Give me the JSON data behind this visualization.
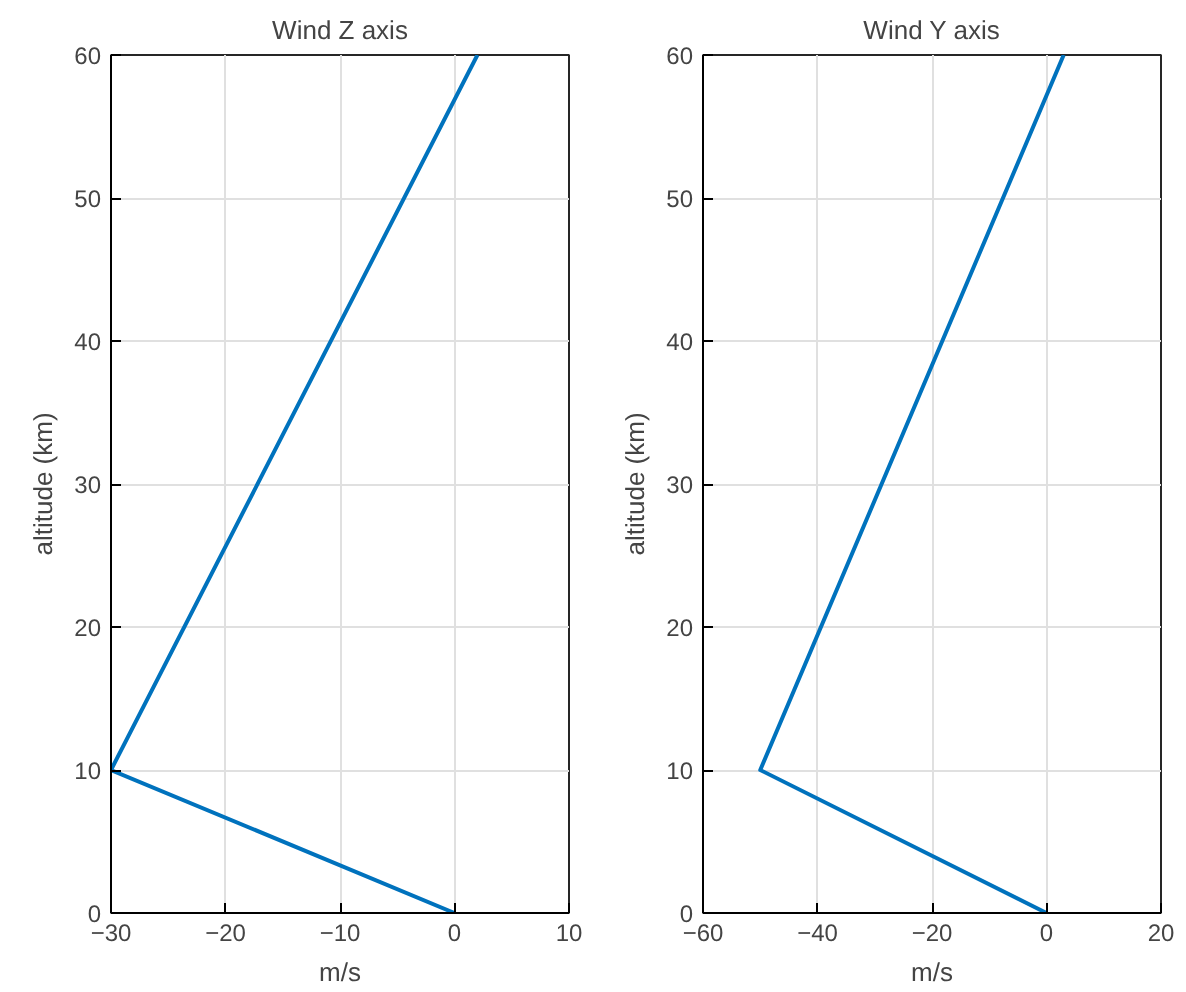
{
  "chart_data": [
    {
      "type": "line",
      "title": "Wind Z axis",
      "xlabel": "m/s",
      "ylabel": "altitude (km)",
      "xlim": [
        -30,
        10
      ],
      "xticks": [
        -30,
        -20,
        -10,
        0,
        10
      ],
      "ylim": [
        0,
        60
      ],
      "yticks": [
        0,
        10,
        20,
        30,
        40,
        50,
        60
      ],
      "grid": true,
      "series": [
        {
          "color": "#0072bd",
          "x": [
            0,
            -30,
            2
          ],
          "values": [
            0,
            10,
            60
          ]
        }
      ]
    },
    {
      "type": "line",
      "title": "Wind Y axis",
      "xlabel": "m/s",
      "ylabel": "altitude (km)",
      "xlim": [
        -60,
        20
      ],
      "xticks": [
        -60,
        -40,
        -20,
        0,
        20
      ],
      "ylim": [
        0,
        60
      ],
      "yticks": [
        0,
        10,
        20,
        30,
        40,
        50,
        60
      ],
      "grid": true,
      "series": [
        {
          "color": "#0072bd",
          "x": [
            0,
            -50,
            3
          ],
          "values": [
            0,
            10,
            60
          ]
        }
      ]
    }
  ]
}
